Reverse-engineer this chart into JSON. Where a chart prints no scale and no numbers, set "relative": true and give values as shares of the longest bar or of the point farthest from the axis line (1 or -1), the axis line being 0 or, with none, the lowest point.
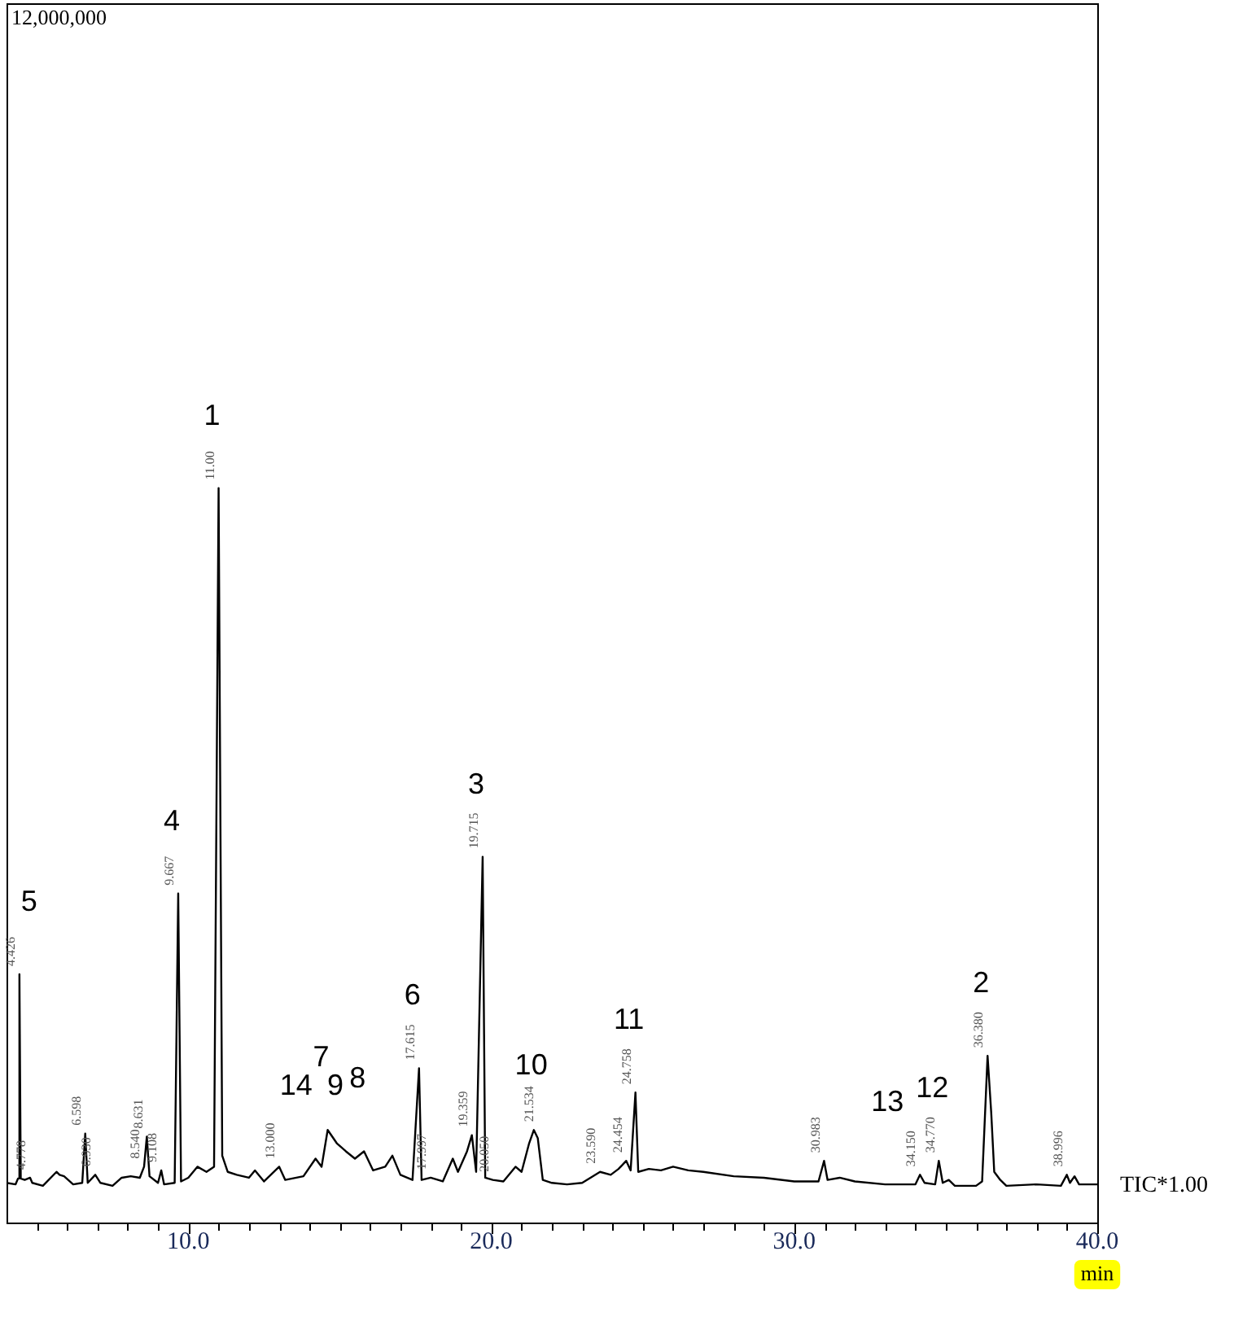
{
  "chart_data": {
    "type": "line",
    "relative": true,
    "xlabel": "min",
    "xlim": [
      4,
      40
    ],
    "xticks": [
      {
        "value": 5,
        "label": null
      },
      {
        "value": 6,
        "label": null
      },
      {
        "value": 7,
        "label": null
      },
      {
        "value": 8,
        "label": null
      },
      {
        "value": 9,
        "label": null
      },
      {
        "value": 10,
        "label": "10.0"
      },
      {
        "value": 11,
        "label": null
      },
      {
        "value": 12,
        "label": null
      },
      {
        "value": 13,
        "label": null
      },
      {
        "value": 14,
        "label": null
      },
      {
        "value": 15,
        "label": null
      },
      {
        "value": 16,
        "label": null
      },
      {
        "value": 17,
        "label": null
      },
      {
        "value": 18,
        "label": null
      },
      {
        "value": 19,
        "label": null
      },
      {
        "value": 20,
        "label": "20.0"
      },
      {
        "value": 21,
        "label": null
      },
      {
        "value": 22,
        "label": null
      },
      {
        "value": 23,
        "label": null
      },
      {
        "value": 24,
        "label": null
      },
      {
        "value": 25,
        "label": null
      },
      {
        "value": 26,
        "label": null
      },
      {
        "value": 27,
        "label": null
      },
      {
        "value": 28,
        "label": null
      },
      {
        "value": 29,
        "label": null
      },
      {
        "value": 30,
        "label": "30.0"
      },
      {
        "value": 31,
        "label": null
      },
      {
        "value": 32,
        "label": null
      },
      {
        "value": 33,
        "label": null
      },
      {
        "value": 34,
        "label": null
      },
      {
        "value": 35,
        "label": null
      },
      {
        "value": 36,
        "label": null
      },
      {
        "value": 37,
        "label": null
      },
      {
        "value": 38,
        "label": null
      },
      {
        "value": 39,
        "label": null
      },
      {
        "value": 40,
        "label": "40.0"
      }
    ],
    "grid": false,
    "legend": false,
    "marker": "none",
    "line_style": "solid",
    "x": [
      4.0,
      4.3,
      4.38,
      4.426,
      4.47,
      4.6,
      4.778,
      4.85,
      5.2,
      5.65,
      5.75,
      5.9,
      6.2,
      6.5,
      6.598,
      6.68,
      6.93,
      7.1,
      7.5,
      7.8,
      8.1,
      8.4,
      8.54,
      8.631,
      8.72,
      9.0,
      9.108,
      9.2,
      9.55,
      9.667,
      9.76,
      10.0,
      10.3,
      10.6,
      10.85,
      11.0,
      11.12,
      11.3,
      11.6,
      12.0,
      12.2,
      12.5,
      13.0,
      13.2,
      13.8,
      14.2,
      14.4,
      14.6,
      14.9,
      15.2,
      15.5,
      15.8,
      16.1,
      16.5,
      16.736,
      17.0,
      17.4,
      17.615,
      17.7,
      18.0,
      18.4,
      18.73,
      18.9,
      19.2,
      19.359,
      19.5,
      19.715,
      19.8,
      20.05,
      20.4,
      20.8,
      21.0,
      21.25,
      21.404,
      21.534,
      21.7,
      22.0,
      22.5,
      23.0,
      23.59,
      23.942,
      24.2,
      24.454,
      24.6,
      24.758,
      24.85,
      25.2,
      25.6,
      26.0,
      26.5,
      27.0,
      28.0,
      29.0,
      30.0,
      30.8,
      30.983,
      31.1,
      31.5,
      32.0,
      33.0,
      34.0,
      34.15,
      34.3,
      34.65,
      34.77,
      34.9,
      35.1,
      35.3,
      36.0,
      36.2,
      36.38,
      36.5,
      36.6,
      36.8,
      37.0,
      38.0,
      38.8,
      38.996,
      39.1,
      39.25,
      39.4,
      40.0
    ],
    "series": [
      {
        "color": "#000000",
        "values": [
          0.054,
          0.052,
          0.06,
          0.338,
          0.06,
          0.058,
          0.061,
          0.054,
          0.05,
          0.069,
          0.065,
          0.063,
          0.052,
          0.054,
          0.121,
          0.054,
          0.065,
          0.054,
          0.05,
          0.061,
          0.063,
          0.061,
          0.076,
          0.117,
          0.063,
          0.054,
          0.071,
          0.052,
          0.054,
          0.448,
          0.056,
          0.061,
          0.076,
          0.069,
          0.076,
          1,
          0.091,
          0.069,
          0.065,
          0.061,
          0.071,
          0.056,
          0.076,
          0.058,
          0.063,
          0.087,
          0.076,
          0.126,
          0.108,
          0.097,
          0.087,
          0.097,
          0.071,
          0.076,
          0.091,
          0.065,
          0.058,
          0.21,
          0.058,
          0.061,
          0.056,
          0.087,
          0.069,
          0.097,
          0.119,
          0.069,
          0.498,
          0.061,
          0.058,
          0.056,
          0.076,
          0.069,
          0.108,
          0.126,
          0.115,
          0.058,
          0.054,
          0.052,
          0.054,
          0.069,
          0.065,
          0.073,
          0.084,
          0.071,
          0.177,
          0.069,
          0.073,
          0.071,
          0.076,
          0.071,
          0.069,
          0.063,
          0.061,
          0.056,
          0.056,
          0.084,
          0.058,
          0.061,
          0.056,
          0.052,
          0.052,
          0.065,
          0.054,
          0.052,
          0.084,
          0.054,
          0.058,
          0.05,
          0.05,
          0.056,
          0.227,
          0.15,
          0.069,
          0.058,
          0.05,
          0.052,
          0.05,
          0.065,
          0.054,
          0.063,
          0.052,
          0.052
        ]
      }
    ],
    "annotations": [
      "12,000,000",
      "TIC*1.00",
      {
        "text": "1",
        "x": 11.0,
        "y": 1
      },
      {
        "text": "2",
        "x": 36.38,
        "y": 0.227
      },
      {
        "text": "3",
        "x": 19.715,
        "y": 0.498
      },
      {
        "text": "4",
        "x": 9.667,
        "y": 0.448
      },
      {
        "text": "5",
        "x": 4.426,
        "y": 0.338
      },
      {
        "text": "6",
        "x": 17.615,
        "y": 0.21
      },
      {
        "text": "7",
        "x": 14.6,
        "y": 0.126
      },
      {
        "text": "8",
        "x": 15.8,
        "y": 0.097
      },
      {
        "text": "9",
        "x": 15.5,
        "y": 0.087
      },
      {
        "text": "10",
        "x": 21.534,
        "y": 0.115
      },
      {
        "text": "11",
        "x": 24.758,
        "y": 0.177
      },
      {
        "text": "12",
        "x": 34.77,
        "y": 0.084
      },
      {
        "text": "13",
        "x": 34.15,
        "y": 0.065
      },
      {
        "text": "14",
        "x": 14.2,
        "y": 0.087
      },
      {
        "text": "4.426",
        "x": 4.426,
        "y": 0.338
      },
      {
        "text": "4.778",
        "x": 4.778,
        "y": 0.061
      },
      {
        "text": "6.598",
        "x": 6.598,
        "y": 0.121
      },
      {
        "text": "6.930",
        "x": 6.93,
        "y": 0.065
      },
      {
        "text": "8.540",
        "x": 8.54,
        "y": 0.076
      },
      {
        "text": "8.631",
        "x": 8.631,
        "y": 0.117
      },
      {
        "text": "9.108",
        "x": 9.108,
        "y": 0.071
      },
      {
        "text": "9.667",
        "x": 9.667,
        "y": 0.448
      },
      {
        "text": "11.00",
        "x": 11.0,
        "y": 1
      },
      {
        "text": "13.000",
        "x": 13.0,
        "y": 0.076
      },
      {
        "text": "17.615",
        "x": 17.615,
        "y": 0.21
      },
      {
        "text": "17.997",
        "x": 18.0,
        "y": 0.061
      },
      {
        "text": "19.359",
        "x": 19.359,
        "y": 0.119
      },
      {
        "text": "19.715",
        "x": 19.715,
        "y": 0.498
      },
      {
        "text": "20.050",
        "x": 20.05,
        "y": 0.058
      },
      {
        "text": "21.534",
        "x": 21.534,
        "y": 0.126
      },
      {
        "text": "23.590",
        "x": 23.59,
        "y": 0.069
      },
      {
        "text": "24.454",
        "x": 24.454,
        "y": 0.084
      },
      {
        "text": "24.758",
        "x": 24.758,
        "y": 0.177
      },
      {
        "text": "30.983",
        "x": 30.983,
        "y": 0.084
      },
      {
        "text": "34.150",
        "x": 34.15,
        "y": 0.065
      },
      {
        "text": "34.770",
        "x": 34.77,
        "y": 0.084
      },
      {
        "text": "36.380",
        "x": 36.38,
        "y": 0.227
      },
      {
        "text": "38.996",
        "x": 38.996,
        "y": 0.065
      }
    ]
  }
}
